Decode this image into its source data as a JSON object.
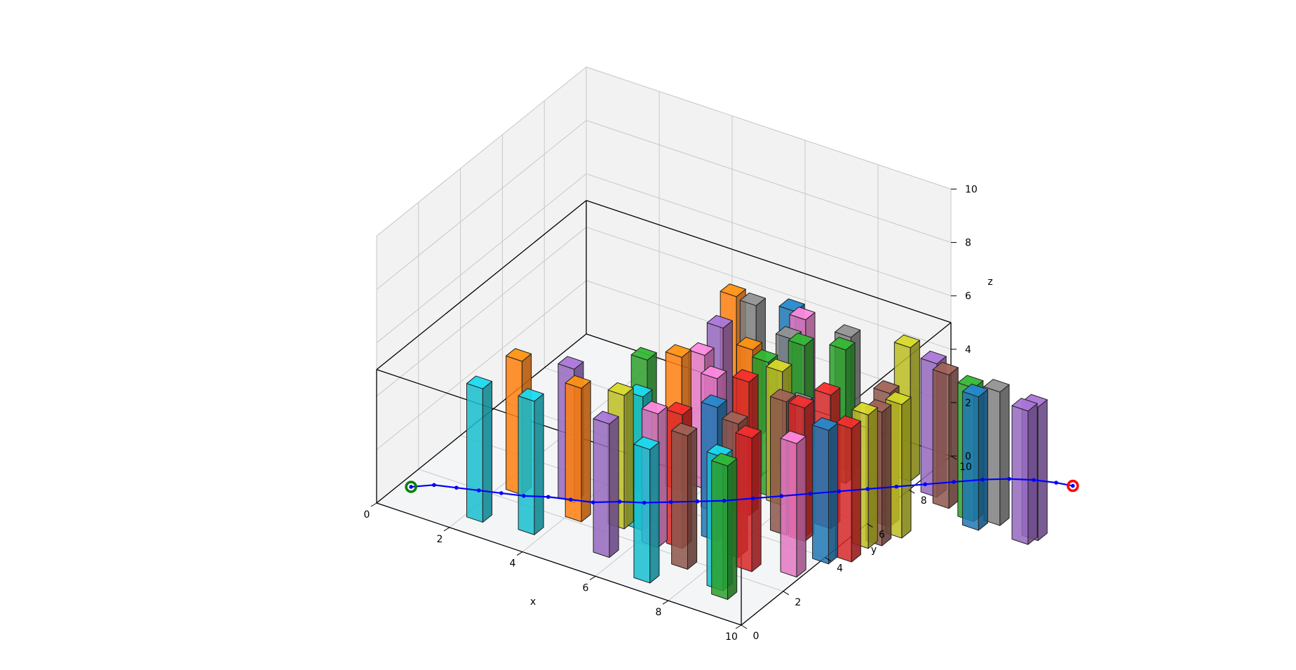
{
  "chart_data": {
    "type": "3d-bar-path",
    "title": "",
    "axes": {
      "x": {
        "label": "x",
        "range": [
          0,
          10
        ],
        "ticks": [
          "0",
          "2",
          "4",
          "6",
          "8",
          "10"
        ]
      },
      "y": {
        "label": "y",
        "range": [
          0,
          10
        ],
        "ticks": [
          "0",
          "2",
          "4",
          "6",
          "8",
          "10"
        ]
      },
      "z": {
        "label": "z",
        "range": [
          0,
          10
        ],
        "ticks": [
          "0",
          "2",
          "4",
          "6",
          "8",
          "10"
        ]
      }
    },
    "grid": true,
    "obstacle_region": {
      "x": [
        0,
        10
      ],
      "y": [
        0,
        10
      ],
      "z": [
        0,
        5
      ]
    },
    "obstacles": [
      {
        "x": 2.3,
        "y": 0.9,
        "h": 5.0,
        "color": "#17becf"
      },
      {
        "x": 3.6,
        "y": 1.1,
        "h": 5.0,
        "color": "#17becf"
      },
      {
        "x": 5.6,
        "y": 1.2,
        "h": 5.0,
        "color": "#9467bd"
      },
      {
        "x": 7.0,
        "y": 0.7,
        "h": 5.0,
        "color": "#17becf"
      },
      {
        "x": 7.4,
        "y": 1.8,
        "h": 5.0,
        "color": "#8c564b"
      },
      {
        "x": 6.8,
        "y": 2.6,
        "h": 5.0,
        "color": "#d62728"
      },
      {
        "x": 8.6,
        "y": 1.4,
        "h": 5.0,
        "color": "#17becf"
      },
      {
        "x": 8.9,
        "y": 1.1,
        "h": 5.0,
        "color": "#2ca02c"
      },
      {
        "x": 8.7,
        "y": 2.6,
        "h": 5.0,
        "color": "#d62728"
      },
      {
        "x": 2.4,
        "y": 2.6,
        "h": 5.0,
        "color": "#ff7f0e"
      },
      {
        "x": 3.6,
        "y": 3.0,
        "h": 5.0,
        "color": "#9467bd"
      },
      {
        "x": 4.2,
        "y": 2.3,
        "h": 5.0,
        "color": "#ff7f0e"
      },
      {
        "x": 5.2,
        "y": 2.6,
        "h": 5.0,
        "color": "#bcbd22"
      },
      {
        "x": 5.6,
        "y": 2.8,
        "h": 5.0,
        "color": "#17becf"
      },
      {
        "x": 6.3,
        "y": 2.3,
        "h": 5.0,
        "color": "#e377c2"
      },
      {
        "x": 7.3,
        "y": 3.4,
        "h": 5.0,
        "color": "#1f77b4"
      },
      {
        "x": 8.1,
        "y": 3.0,
        "h": 5.0,
        "color": "#8c564b"
      },
      {
        "x": 9.7,
        "y": 3.0,
        "h": 5.0,
        "color": "#e377c2"
      },
      {
        "x": 9.0,
        "y": 4.6,
        "h": 5.0,
        "color": "#d62728"
      },
      {
        "x": 10.0,
        "y": 4.0,
        "h": 5.0,
        "color": "#1f77b4"
      },
      {
        "x": 10.4,
        "y": 4.4,
        "h": 5.0,
        "color": "#d62728"
      },
      {
        "x": 4.8,
        "y": 4.4,
        "h": 5.0,
        "color": "#2ca02c"
      },
      {
        "x": 5.4,
        "y": 5.0,
        "h": 5.0,
        "color": "#ff7f0e"
      },
      {
        "x": 5.8,
        "y": 5.4,
        "h": 5.0,
        "color": "#e377c2"
      },
      {
        "x": 6.6,
        "y": 4.6,
        "h": 5.0,
        "color": "#e377c2"
      },
      {
        "x": 7.3,
        "y": 4.9,
        "h": 5.0,
        "color": "#d62728"
      },
      {
        "x": 8.5,
        "y": 4.6,
        "h": 5.0,
        "color": "#8c564b"
      },
      {
        "x": 8.9,
        "y": 4.7,
        "h": 5.0,
        "color": "#7f7f7f"
      },
      {
        "x": 10.4,
        "y": 5.2,
        "h": 5.0,
        "color": "#bcbd22"
      },
      {
        "x": 10.6,
        "y": 5.5,
        "h": 5.0,
        "color": "#8c564b"
      },
      {
        "x": 5.5,
        "y": 6.8,
        "h": 5.0,
        "color": "#9467bd"
      },
      {
        "x": 6.6,
        "y": 6.3,
        "h": 5.0,
        "color": "#ff7f0e"
      },
      {
        "x": 7.2,
        "y": 6.0,
        "h": 5.0,
        "color": "#2ca02c"
      },
      {
        "x": 7.7,
        "y": 5.8,
        "h": 5.0,
        "color": "#bcbd22"
      },
      {
        "x": 9.2,
        "y": 5.5,
        "h": 5.0,
        "color": "#d62728"
      },
      {
        "x": 10.3,
        "y": 6.4,
        "h": 5.0,
        "color": "#8c564b"
      },
      {
        "x": 10.8,
        "y": 6.1,
        "h": 5.0,
        "color": "#bcbd22"
      },
      {
        "x": 5.0,
        "y": 8.3,
        "h": 5.0,
        "color": "#ff7f0e"
      },
      {
        "x": 5.6,
        "y": 8.2,
        "h": 5.0,
        "color": "#7f7f7f"
      },
      {
        "x": 6.5,
        "y": 8.5,
        "h": 5.0,
        "color": "#1f77b4"
      },
      {
        "x": 6.9,
        "y": 8.3,
        "h": 5.0,
        "color": "#e377c2"
      },
      {
        "x": 7.1,
        "y": 7.3,
        "h": 5.0,
        "color": "#7f7f7f"
      },
      {
        "x": 7.5,
        "y": 7.2,
        "h": 5.0,
        "color": "#2ca02c"
      },
      {
        "x": 8.2,
        "y": 8.2,
        "h": 5.0,
        "color": "#7f7f7f"
      },
      {
        "x": 8.4,
        "y": 7.6,
        "h": 5.0,
        "color": "#2ca02c"
      },
      {
        "x": 9.6,
        "y": 8.6,
        "h": 5.0,
        "color": "#bcbd22"
      },
      {
        "x": 10.5,
        "y": 8.3,
        "h": 5.0,
        "color": "#9467bd"
      },
      {
        "x": 11.0,
        "y": 8.0,
        "h": 5.0,
        "color": "#8c564b"
      },
      {
        "x": 11.8,
        "y": 7.8,
        "h": 5.0,
        "color": "#2ca02c"
      },
      {
        "x": 12.1,
        "y": 7.5,
        "h": 5.0,
        "color": "#1f77b4"
      },
      {
        "x": 12.4,
        "y": 8.0,
        "h": 5.0,
        "color": "#7f7f7f"
      },
      {
        "x": 13.4,
        "y": 7.6,
        "h": 5.0,
        "color": "#9467bd"
      },
      {
        "x": 13.5,
        "y": 7.9,
        "h": 5.0,
        "color": "#9467bd"
      }
    ],
    "path": {
      "color": "#0000ff",
      "points": [
        [
          0.6,
          0.6,
          0.5
        ],
        [
          1.0,
          1.0,
          0.5
        ],
        [
          1.5,
          1.2,
          0.5
        ],
        [
          2.0,
          1.4,
          0.5
        ],
        [
          2.5,
          1.6,
          0.5
        ],
        [
          3.0,
          1.8,
          0.5
        ],
        [
          3.5,
          2.1,
          0.5
        ],
        [
          4.0,
          2.3,
          0.5
        ],
        [
          4.5,
          2.5,
          0.5
        ],
        [
          5.0,
          2.9,
          0.5
        ],
        [
          5.5,
          3.2,
          0.5
        ],
        [
          6.0,
          3.6,
          0.5
        ],
        [
          6.5,
          4.0,
          0.5
        ],
        [
          7.0,
          4.4,
          0.5
        ],
        [
          7.5,
          4.9,
          0.5
        ],
        [
          8.0,
          5.4,
          0.5
        ],
        [
          8.5,
          5.9,
          0.5
        ],
        [
          9.0,
          6.4,
          0.5
        ],
        [
          9.5,
          6.9,
          0.5
        ],
        [
          10.0,
          7.4,
          0.5
        ],
        [
          10.5,
          7.9,
          0.5
        ],
        [
          11.0,
          8.4,
          0.5
        ],
        [
          11.5,
          8.9,
          0.5
        ],
        [
          12.0,
          9.3,
          0.5
        ],
        [
          12.5,
          9.6,
          0.5
        ],
        [
          13.0,
          9.8,
          0.5
        ],
        [
          13.4,
          9.9,
          0.5
        ]
      ],
      "start": {
        "point": [
          0.6,
          0.6,
          0.5
        ],
        "color": "#008000"
      },
      "goal": {
        "point": [
          13.4,
          9.9,
          0.5
        ],
        "color": "#ff0000"
      }
    }
  }
}
